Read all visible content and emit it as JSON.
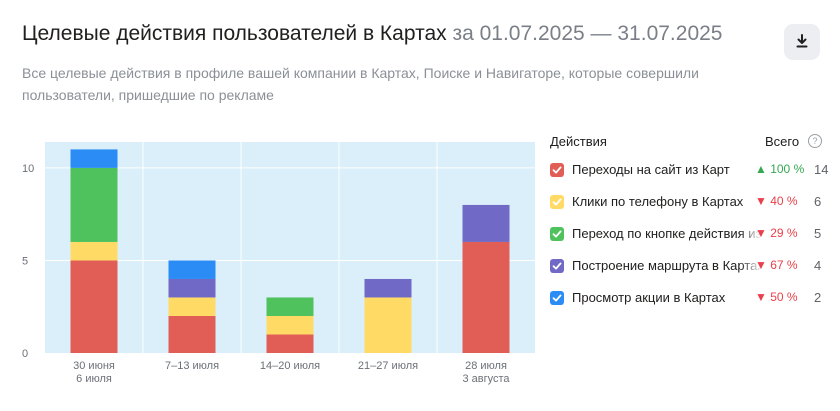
{
  "header": {
    "title": "Целевые действия пользователей в Картах",
    "period": "за 01.07.2025 — 31.07.2025",
    "subtitle": "Все целевые действия в профиле вашей компании в Картах, Поиске и Навигаторе, которые совершили пользователи, пришедшие по рекламе",
    "download_icon": "download-icon"
  },
  "legend": {
    "col_title": "Действия",
    "col_total": "Всего",
    "info_icon": "question-circle-icon",
    "info_symbol": "?",
    "items": [
      {
        "label": "Переходы на сайт из Карт",
        "delta": "▲ 100 %",
        "direction": "up",
        "total": "14",
        "color": "#e15e57"
      },
      {
        "label": "Клики по телефону в Картах",
        "delta": "▼ 40 %",
        "direction": "down",
        "total": "6",
        "color": "#ffdb66"
      },
      {
        "label": "Переход по кнопке действия из Карт",
        "delta": "▼ 29 %",
        "direction": "down",
        "total": "5",
        "color": "#4fc25d"
      },
      {
        "label": "Построение маршрута в Картах",
        "delta": "▼ 67 %",
        "direction": "down",
        "total": "4",
        "color": "#7069c6"
      },
      {
        "label": "Просмотр акции в Картах",
        "delta": "▼ 50 %",
        "direction": "down",
        "total": "2",
        "color": "#2a8cf4"
      }
    ]
  },
  "chart_data": {
    "type": "bar",
    "stacked": true,
    "categories": [
      [
        "30 июня",
        "6 июля"
      ],
      [
        "7–13 июля"
      ],
      [
        "14–20 июля"
      ],
      [
        "21–27 июля"
      ],
      [
        "28 июля",
        "3 августа"
      ]
    ],
    "series": [
      {
        "name": "Переходы на сайт из Карт",
        "color": "#e15e57",
        "values": [
          5,
          2,
          1,
          0,
          6
        ]
      },
      {
        "name": "Клики по телефону в Картах",
        "color": "#ffdb66",
        "values": [
          1,
          1,
          1,
          3,
          0
        ]
      },
      {
        "name": "Переход по кнопке действия из Карт",
        "color": "#4fc25d",
        "values": [
          4,
          0,
          1,
          0,
          0
        ]
      },
      {
        "name": "Построение маршрута в Картах",
        "color": "#7069c6",
        "values": [
          0,
          1,
          0,
          1,
          2
        ]
      },
      {
        "name": "Просмотр акции в Картах",
        "color": "#2a8cf4",
        "values": [
          1,
          1,
          0,
          0,
          0
        ]
      }
    ],
    "yticks": [
      0,
      5,
      10
    ],
    "ylim": [
      0,
      11.4
    ],
    "grid": true,
    "legend_position": "right",
    "plot_background": "#daeff9"
  }
}
